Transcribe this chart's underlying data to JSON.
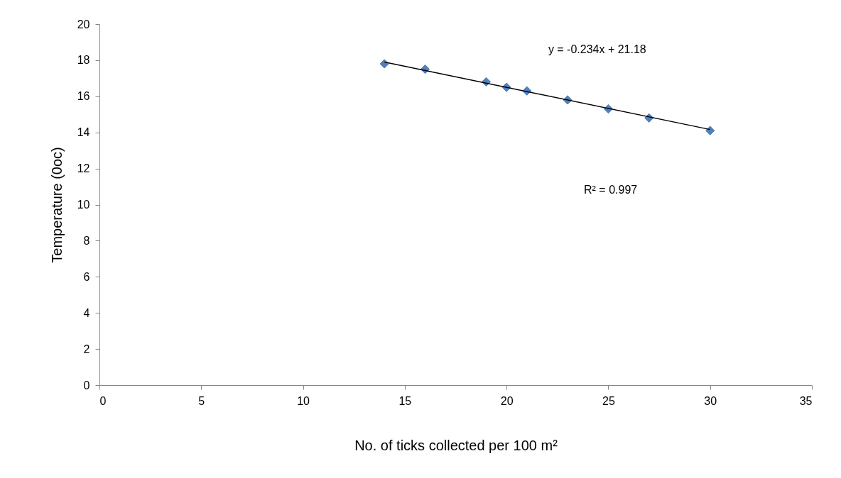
{
  "chart_data": {
    "type": "scatter",
    "xlabel": "No. of ticks collected  per 100 m²",
    "ylabel": "Temperature (0oc)",
    "x": [
      14,
      16,
      19,
      20,
      21,
      23,
      25,
      27,
      30
    ],
    "series": [
      {
        "color": "#4f81bd",
        "values": [
          17.8,
          17.5,
          16.8,
          16.5,
          16.3,
          15.8,
          15.3,
          14.8,
          14.1
        ]
      },
      {
        "type": "line",
        "color": "#000000",
        "marker": "none",
        "x": [
          14,
          30
        ],
        "values": [
          17.9,
          14.16
        ]
      }
    ],
    "marker": "diamond",
    "xlim": [
      0,
      35
    ],
    "xticks": [
      0,
      5,
      10,
      15,
      20,
      25,
      30,
      35
    ],
    "ylim": [
      0,
      20
    ],
    "yticks": [
      0,
      2,
      4,
      6,
      8,
      10,
      12,
      14,
      16,
      18,
      20
    ],
    "grid": false,
    "annotations": [
      "y = -0.234x + 21.18",
      "R² = 0.997"
    ]
  }
}
